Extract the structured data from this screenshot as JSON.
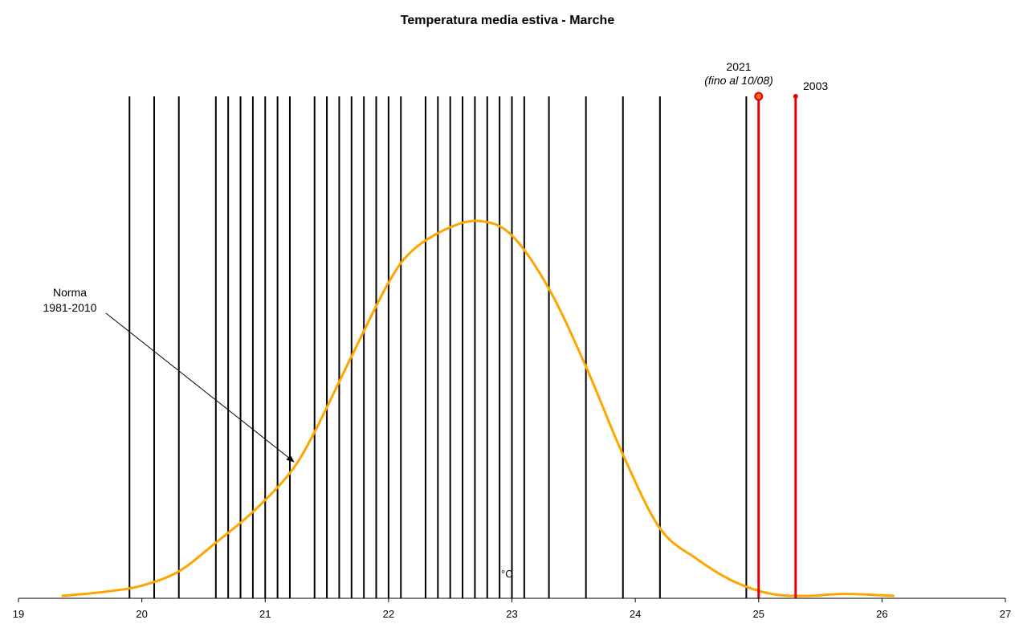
{
  "chart_data": {
    "type": "line",
    "title": "Temperatura media estiva - Marche",
    "xlabel": "°C",
    "ylabel": "",
    "xlim": [
      19,
      27
    ],
    "x_ticks": [
      "19",
      "20",
      "21",
      "22",
      "23",
      "24",
      "25",
      "26",
      "27"
    ],
    "grid": false,
    "legend": "none",
    "yearly_values_c": [
      19.9,
      20.1,
      20.3,
      20.6,
      20.7,
      20.8,
      20.9,
      21.0,
      21.1,
      21.2,
      21.4,
      21.5,
      21.6,
      21.7,
      21.8,
      21.9,
      22.0,
      22.1,
      22.3,
      22.4,
      22.5,
      22.6,
      22.7,
      22.8,
      22.9,
      23.0,
      23.1,
      23.3,
      23.6,
      23.9,
      24.2,
      24.9
    ],
    "highlighted_years": [
      {
        "year": "2021",
        "note": "(fino al 10/08)",
        "value": 25.0
      },
      {
        "year": "2003",
        "note": "",
        "value": 25.3
      }
    ],
    "series": [
      {
        "name": "Norma 1981-2010",
        "x": [
          19.35,
          19.7,
          20.0,
          20.3,
          20.6,
          20.9,
          21.2,
          21.4,
          21.7,
          22.0,
          22.2,
          22.5,
          22.75,
          23.0,
          23.3,
          23.6,
          23.9,
          24.2,
          24.5,
          24.8,
          25.1,
          25.4,
          25.7,
          26.1
        ],
        "y": [
          0.0,
          0.02,
          0.05,
          0.12,
          0.26,
          0.41,
          0.6,
          0.8,
          1.17,
          1.53,
          1.69,
          1.8,
          1.83,
          1.76,
          1.5,
          1.12,
          0.69,
          0.33,
          0.18,
          0.07,
          0.01,
          0.0,
          0.01,
          0.0
        ]
      }
    ],
    "annotation": {
      "line1": "Norma",
      "line2": "1981-2010"
    },
    "colors": {
      "normal_curve": "#FFA500",
      "year_line": "#000000",
      "highlight_line": "#E0000A",
      "highlight_marker_fill": "#F26A1B"
    }
  }
}
